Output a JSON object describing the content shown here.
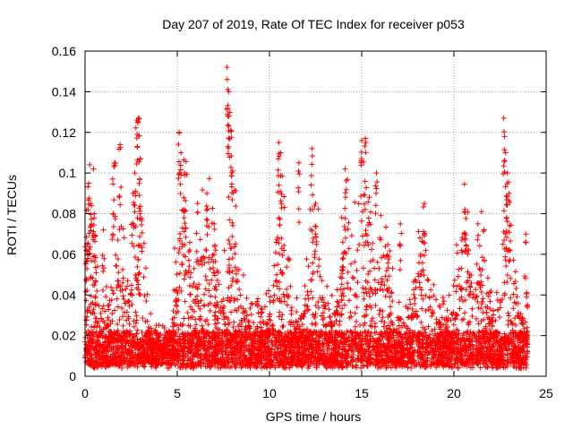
{
  "chart_data": {
    "type": "scatter",
    "title": "Day 207 of 2019, Rate Of TEC Index for receiver p053",
    "xlabel": "GPS time / hours",
    "ylabel": "ROTI / TECUs",
    "xlim": [
      0,
      25
    ],
    "ylim": [
      0,
      0.16
    ],
    "xticks": [
      0,
      5,
      10,
      15,
      20,
      25
    ],
    "xtick_labels": [
      "0",
      "5",
      "10",
      "15",
      "20",
      "25"
    ],
    "yticks": [
      0,
      0.02,
      0.04,
      0.06,
      0.08,
      0.1,
      0.12,
      0.14,
      0.16
    ],
    "ytick_labels": [
      "0",
      "0.02",
      "0.04",
      "0.06",
      "0.08",
      "0.1",
      "0.12",
      "0.14",
      "0.16"
    ],
    "grid": true,
    "marker": "+",
    "color": "#ff0000",
    "data_coverage": [
      0,
      24
    ],
    "series": [
      {
        "name": "ROTI",
        "representative_x": [
          0.1,
          0.2,
          0.3,
          0.5,
          1.0,
          1.5,
          1.6,
          1.9,
          2.6,
          2.7,
          2.8,
          2.9,
          3.0,
          5.1,
          5.2,
          5.4,
          6.1,
          6.6,
          7.0,
          7.7,
          7.8,
          7.8,
          7.9,
          8.0,
          10.5,
          10.6,
          11.6,
          12.3,
          12.5,
          14.1,
          15.0,
          15.2,
          15.8,
          17.1,
          18.4,
          20.6,
          21.3,
          22.7,
          22.8,
          22.9,
          23.0,
          23.9
        ],
        "representative_y": [
          0.065,
          0.095,
          0.085,
          0.08,
          0.072,
          0.097,
          0.105,
          0.114,
          0.09,
          0.1,
          0.126,
          0.127,
          0.107,
          0.12,
          0.11,
          0.1,
          0.085,
          0.09,
          0.075,
          0.152,
          0.14,
          0.128,
          0.121,
          0.101,
          0.115,
          0.11,
          0.105,
          0.112,
          0.085,
          0.102,
          0.116,
          0.117,
          0.1,
          0.075,
          0.085,
          0.082,
          0.075,
          0.127,
          0.11,
          0.1,
          0.09,
          0.07
        ]
      }
    ]
  }
}
